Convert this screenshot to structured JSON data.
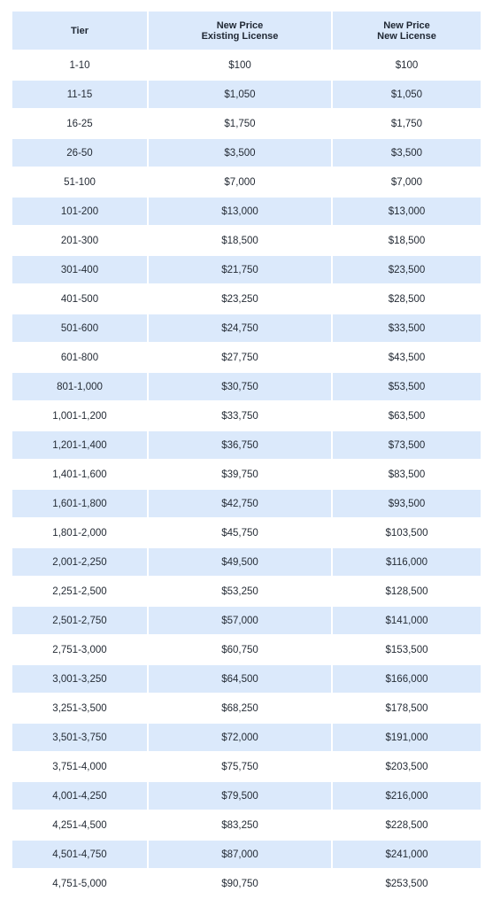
{
  "table": {
    "headers": {
      "tier": "Tier",
      "existing_line1": "New Price",
      "existing_line2": "Existing License",
      "new_line1": "New Price",
      "new_line2": "New License"
    },
    "rows": [
      [
        "1-10",
        "$100",
        "$100"
      ],
      [
        "11-15",
        "$1,050",
        "$1,050"
      ],
      [
        "16-25",
        "$1,750",
        "$1,750"
      ],
      [
        "26-50",
        "$3,500",
        "$3,500"
      ],
      [
        "51-100",
        "$7,000",
        "$7,000"
      ],
      [
        "101-200",
        "$13,000",
        "$13,000"
      ],
      [
        "201-300",
        "$18,500",
        "$18,500"
      ],
      [
        "301-400",
        "$21,750",
        "$23,500"
      ],
      [
        "401-500",
        "$23,250",
        "$28,500"
      ],
      [
        "501-600",
        "$24,750",
        "$33,500"
      ],
      [
        "601-800",
        "$27,750",
        "$43,500"
      ],
      [
        "801-1,000",
        "$30,750",
        "$53,500"
      ],
      [
        "1,001-1,200",
        "$33,750",
        "$63,500"
      ],
      [
        "1,201-1,400",
        "$36,750",
        "$73,500"
      ],
      [
        "1,401-1,600",
        "$39,750",
        "$83,500"
      ],
      [
        "1,601-1,800",
        "$42,750",
        "$93,500"
      ],
      [
        "1,801-2,000",
        "$45,750",
        "$103,500"
      ],
      [
        "2,001-2,250",
        "$49,500",
        "$116,000"
      ],
      [
        "2,251-2,500",
        "$53,250",
        "$128,500"
      ],
      [
        "2,501-2,750",
        "$57,000",
        "$141,000"
      ],
      [
        "2,751-3,000",
        "$60,750",
        "$153,500"
      ],
      [
        "3,001-3,250",
        "$64,500",
        "$166,000"
      ],
      [
        "3,251-3,500",
        "$68,250",
        "$178,500"
      ],
      [
        "3,501-3,750",
        "$72,000",
        "$191,000"
      ],
      [
        "3,751-4,000",
        "$75,750",
        "$203,500"
      ],
      [
        "4,001-4,250",
        "$79,500",
        "$216,000"
      ],
      [
        "4,251-4,500",
        "$83,250",
        "$228,500"
      ],
      [
        "4,501-4,750",
        "$87,000",
        "$241,000"
      ],
      [
        "4,751-5,000",
        "$90,750",
        "$253,500"
      ]
    ]
  },
  "colors": {
    "band": "#dbe9fb",
    "text": "#252c36"
  }
}
